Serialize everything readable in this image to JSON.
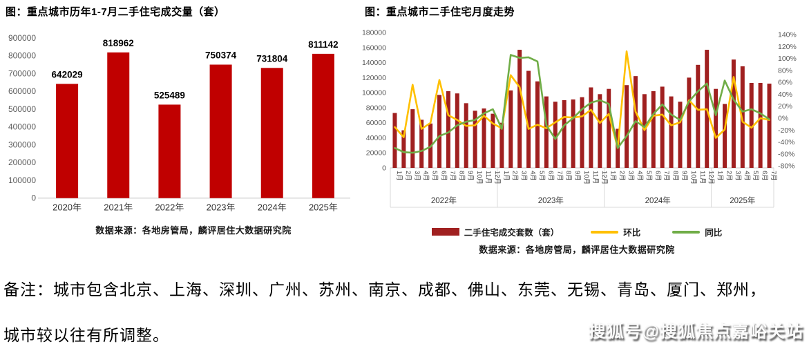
{
  "note": {
    "line1": "备注：城市包含北京、上海、深圳、广州、苏州、南京、成都、佛山、东莞、无锡、青岛、厦门、郑州，",
    "line2": "城市较以往有所调整。"
  },
  "watermark": {
    "text": "搜狐号@搜狐焦点嘉峪关站"
  },
  "chart_data": [
    {
      "type": "bar",
      "title": "图：重点城市历年1-7月二手住宅成交量（套）",
      "categories": [
        "2020年",
        "2021年",
        "2022年",
        "2023年",
        "2024年",
        "2025年"
      ],
      "values": [
        642029,
        818962,
        525489,
        750374,
        731804,
        811142
      ],
      "data_labels": [
        642029,
        818962,
        525489,
        750374,
        731804,
        811142
      ],
      "xlabel": "",
      "ylabel": "",
      "ylim": [
        0,
        900000
      ],
      "ytick_step": 100000,
      "grid": false,
      "bar_color": "#C00000",
      "source": "数据来源：各地房管局，麟评居住大数据研究院"
    },
    {
      "type": "bar+line",
      "title": "图：重点城市二手住宅月度走势",
      "month_labels": [
        "1月",
        "2月",
        "3月",
        "4月",
        "5月",
        "6月",
        "7月",
        "8月",
        "9月",
        "10月",
        "11月",
        "12月",
        "1月",
        "2月",
        "3月",
        "4月",
        "5月",
        "6月",
        "7月",
        "8月",
        "9月",
        "10月",
        "11月",
        "12月",
        "1月",
        "2月",
        "3月",
        "4月",
        "5月",
        "6月",
        "7月",
        "8月",
        "9月",
        "10月",
        "11月",
        "12月",
        "1月",
        "2月",
        "3月",
        "4月",
        "5月",
        "6月",
        "7月"
      ],
      "year_groups": [
        {
          "label": "2022年",
          "months": 12
        },
        {
          "label": "2023年",
          "months": 12
        },
        {
          "label": "2024年",
          "months": 12
        },
        {
          "label": "2025年",
          "months": 7
        }
      ],
      "series": [
        {
          "name": "二手住宅成交套数（套）",
          "type": "bar",
          "axis": "left",
          "color": "#A02020",
          "values": [
            73000,
            50000,
            78000,
            64000,
            59000,
            97000,
            102000,
            99000,
            86000,
            76000,
            79000,
            72000,
            60000,
            103000,
            157000,
            129000,
            115000,
            95000,
            88000,
            90000,
            91000,
            94000,
            107000,
            98000,
            105000,
            52000,
            110000,
            122000,
            98000,
            102000,
            108000,
            95000,
            88000,
            120000,
            137000,
            157000,
            105000,
            85000,
            144000,
            135000,
            113000,
            113000,
            112000
          ]
        },
        {
          "name": "环比",
          "type": "line",
          "axis": "right",
          "color": "#FFC000",
          "values": [
            -15,
            -32,
            56,
            -18,
            -8,
            64,
            5,
            -3,
            -13,
            -12,
            4,
            -9,
            -17,
            72,
            52,
            -18,
            -11,
            -17,
            -7,
            2,
            1,
            3,
            14,
            -8,
            7,
            -50,
            112,
            11,
            -20,
            4,
            6,
            -12,
            -7,
            30,
            14,
            15,
            -33,
            -19,
            69,
            -6,
            -16,
            0,
            -3
          ]
        },
        {
          "name": "同比",
          "type": "line",
          "axis": "right",
          "color": "#70AD47",
          "values": [
            -50,
            -57,
            -58,
            -55,
            -48,
            -30,
            -24,
            -12,
            -6,
            -3,
            8,
            15,
            -18,
            106,
            101,
            102,
            95,
            -12,
            -35,
            -12,
            0,
            15,
            26,
            30,
            24,
            -50,
            -30,
            -5,
            -15,
            7,
            23,
            6,
            -3,
            28,
            45,
            58,
            5,
            63,
            31,
            11,
            15,
            8,
            -2
          ]
        }
      ],
      "left_axis": {
        "min": 0,
        "max": 180000,
        "step": 20000
      },
      "right_axis": {
        "min": -80,
        "max": 140,
        "step": 20,
        "suffix": "%"
      },
      "grid": false,
      "legend_position": "bottom",
      "source": "数据来源：各地房管局，麟评居住大数据研究院"
    }
  ]
}
